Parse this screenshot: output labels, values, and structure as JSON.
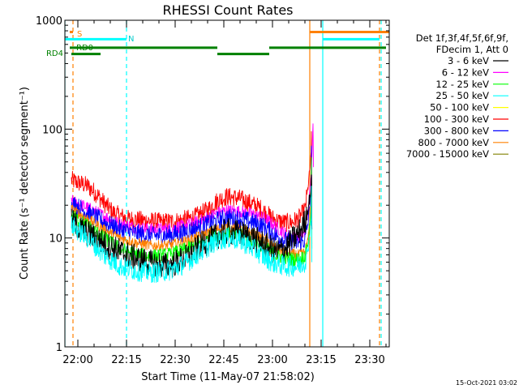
{
  "chart_data": {
    "type": "line",
    "title": "RHESSI Count Rates",
    "xlabel": "Start Time (11-May-07 21:58:02)",
    "ylabel": "Count Rate (s⁻¹ detector segment⁻¹)",
    "yscale": "log",
    "xlim_minutes": [
      -2,
      98
    ],
    "ylim": [
      1,
      1000
    ],
    "x_ticks": [
      {
        "minute": 2,
        "label": "22:00"
      },
      {
        "minute": 17,
        "label": "22:15"
      },
      {
        "minute": 32,
        "label": "22:30"
      },
      {
        "minute": 47,
        "label": "22:45"
      },
      {
        "minute": 62,
        "label": "23:00"
      },
      {
        "minute": 77,
        "label": "23:15"
      },
      {
        "minute": 92,
        "label": "23:30"
      }
    ],
    "y_ticks": [
      {
        "value": 1,
        "label": "1"
      },
      {
        "value": 10,
        "label": "10"
      },
      {
        "value": 100,
        "label": "100"
      },
      {
        "value": 1000,
        "label": "1000"
      }
    ],
    "legend": {
      "header": [
        "Det 1f,3f,4f,5f,6f,9f,",
        "FDecim 1, Att 0"
      ],
      "entries": [
        {
          "label": "3 - 6 keV",
          "color": "#000000"
        },
        {
          "label": "6 - 12 keV",
          "color": "#ff00ff"
        },
        {
          "label": "12 - 25 keV",
          "color": "#00ff00"
        },
        {
          "label": "25 - 50 keV",
          "color": "#00ffff"
        },
        {
          "label": "50 - 100 keV",
          "color": "#ffff00"
        },
        {
          "label": "100 - 300 keV",
          "color": "#ff0000"
        },
        {
          "label": "300 - 800 keV",
          "color": "#0000ff"
        },
        {
          "label": "800 - 7000 keV",
          "color": "#ff8000"
        },
        {
          "label": "7000 - 15000 keV",
          "color": "#808000"
        }
      ]
    },
    "series": [
      {
        "name": "100 - 300 keV",
        "color": "#ff0000",
        "noise": 0.09,
        "end": 74,
        "spike": 95,
        "points": [
          [
            0,
            34
          ],
          [
            5,
            30
          ],
          [
            8,
            25
          ],
          [
            10,
            21
          ],
          [
            13,
            17
          ],
          [
            17,
            15
          ],
          [
            22,
            14.5
          ],
          [
            28,
            14
          ],
          [
            33,
            14.3
          ],
          [
            38,
            15.5
          ],
          [
            42,
            18
          ],
          [
            45,
            22
          ],
          [
            48,
            24
          ],
          [
            52,
            23
          ],
          [
            55,
            21
          ],
          [
            58,
            19
          ],
          [
            61,
            16
          ],
          [
            63,
            14.5
          ],
          [
            66,
            13.8
          ],
          [
            68,
            14
          ],
          [
            70,
            15
          ],
          [
            72,
            18
          ],
          [
            73,
            30
          ],
          [
            74,
            60
          ]
        ]
      },
      {
        "name": "6 - 12 keV",
        "color": "#ff00ff",
        "noise": 0.06,
        "end": 74.5,
        "spike": 112,
        "points": [
          [
            0,
            22
          ],
          [
            5,
            19
          ],
          [
            10,
            16
          ],
          [
            15,
            13.5
          ],
          [
            20,
            12.5
          ],
          [
            25,
            12
          ],
          [
            30,
            12.2
          ],
          [
            35,
            13
          ],
          [
            40,
            14.5
          ],
          [
            45,
            17
          ],
          [
            48,
            18
          ],
          [
            52,
            17.5
          ],
          [
            56,
            16.5
          ],
          [
            60,
            15
          ],
          [
            64,
            12
          ],
          [
            67,
            10.5
          ],
          [
            70,
            10
          ],
          [
            72,
            11
          ],
          [
            73,
            18
          ],
          [
            74,
            40
          ],
          [
            74.5,
            112
          ]
        ]
      },
      {
        "name": "300 - 800 keV",
        "color": "#0000ff",
        "noise": 0.09,
        "end": 74,
        "spike": 70,
        "points": [
          [
            0,
            21
          ],
          [
            5,
            17
          ],
          [
            10,
            14
          ],
          [
            15,
            12
          ],
          [
            20,
            11
          ],
          [
            25,
            10.5
          ],
          [
            30,
            10.6
          ],
          [
            35,
            11.3
          ],
          [
            40,
            12.8
          ],
          [
            45,
            14.5
          ],
          [
            48,
            15.5
          ],
          [
            52,
            15
          ],
          [
            56,
            14
          ],
          [
            60,
            12.5
          ],
          [
            63,
            10.5
          ],
          [
            66,
            9.5
          ],
          [
            70,
            9
          ],
          [
            72,
            9.5
          ],
          [
            73,
            14
          ],
          [
            74,
            30
          ]
        ]
      },
      {
        "name": "800 - 7000 keV",
        "color": "#ff8000",
        "noise": 0.05,
        "end": 74,
        "spike": 40,
        "points": [
          [
            0,
            18.5
          ],
          [
            5,
            15
          ],
          [
            10,
            12
          ],
          [
            15,
            10
          ],
          [
            20,
            9
          ],
          [
            25,
            8.5
          ],
          [
            30,
            8.6
          ],
          [
            35,
            9.3
          ],
          [
            40,
            10.5
          ],
          [
            45,
            12
          ],
          [
            48,
            12.5
          ],
          [
            52,
            12
          ],
          [
            56,
            11
          ],
          [
            60,
            9.5
          ],
          [
            63,
            8
          ],
          [
            66,
            7.3
          ],
          [
            70,
            7
          ],
          [
            72,
            7.4
          ],
          [
            73,
            10
          ],
          [
            74,
            22
          ]
        ]
      },
      {
        "name": "12 - 25 keV",
        "color": "#00ff00",
        "noise": 0.07,
        "end": 74,
        "spike": 55,
        "points": [
          [
            0,
            16
          ],
          [
            5,
            13
          ],
          [
            10,
            10
          ],
          [
            15,
            8
          ],
          [
            20,
            7
          ],
          [
            25,
            6.8
          ],
          [
            30,
            7
          ],
          [
            35,
            7.8
          ],
          [
            40,
            9
          ],
          [
            45,
            10.5
          ],
          [
            48,
            11
          ],
          [
            52,
            10.6
          ],
          [
            56,
            9.5
          ],
          [
            60,
            8
          ],
          [
            63,
            7
          ],
          [
            66,
            6.5
          ],
          [
            70,
            6.3
          ],
          [
            72,
            6.8
          ],
          [
            73,
            9
          ],
          [
            74,
            20
          ]
        ]
      },
      {
        "name": "3 - 6 keV",
        "color": "#000000",
        "noise": 0.13,
        "end": 74,
        "spike": 38,
        "points": [
          [
            0,
            14
          ],
          [
            5,
            11
          ],
          [
            10,
            9
          ],
          [
            15,
            7.5
          ],
          [
            20,
            6.5
          ],
          [
            25,
            5.8
          ],
          [
            30,
            5.5
          ],
          [
            35,
            6.5
          ],
          [
            40,
            8.5
          ],
          [
            45,
            10.5
          ],
          [
            48,
            11.5
          ],
          [
            52,
            11
          ],
          [
            56,
            10
          ],
          [
            60,
            8.5
          ],
          [
            63,
            7.5
          ],
          [
            66,
            8
          ],
          [
            68,
            9.5
          ],
          [
            70,
            11
          ],
          [
            72,
            14
          ],
          [
            73,
            19
          ],
          [
            74,
            30
          ]
        ]
      },
      {
        "name": "25 - 50 keV",
        "color": "#00ffff",
        "noise": 0.1,
        "end": 74,
        "spike": 30,
        "points": [
          [
            0,
            13
          ],
          [
            5,
            10
          ],
          [
            10,
            7
          ],
          [
            15,
            5.5
          ],
          [
            20,
            5
          ],
          [
            25,
            4.8
          ],
          [
            30,
            5
          ],
          [
            35,
            5.8
          ],
          [
            40,
            7.5
          ],
          [
            45,
            9.5
          ],
          [
            48,
            10
          ],
          [
            52,
            9.5
          ],
          [
            56,
            8
          ],
          [
            60,
            6.5
          ],
          [
            63,
            5.8
          ],
          [
            66,
            5.5
          ],
          [
            70,
            5.5
          ],
          [
            72,
            6
          ],
          [
            73,
            8
          ],
          [
            74,
            15
          ]
        ]
      }
    ],
    "flag_lines": [
      {
        "label": "S",
        "color": "#ff8000",
        "segments": [
          [
            -0.5,
            0.5
          ],
          [
            73.5,
            98
          ]
        ],
        "level": 780
      },
      {
        "label": "N",
        "color": "#00ffff",
        "segments": [
          [
            -2,
            17
          ],
          [
            77.5,
            95
          ]
        ],
        "level": 670
      },
      {
        "label": "RD0",
        "color": "#008000",
        "segments": [
          [
            -0.5,
            9
          ],
          [
            9,
            45
          ],
          [
            61,
            97
          ]
        ],
        "level": 560
      },
      {
        "label": "RD4",
        "color": "#008000",
        "segments": [
          [
            0,
            9
          ],
          [
            45,
            61
          ]
        ],
        "level": 490
      }
    ],
    "vertical_lines": [
      {
        "minute": -2,
        "color": "#00ffff",
        "style": "solid"
      },
      {
        "minute": 0.5,
        "color": "#ff8000",
        "style": "dashed"
      },
      {
        "minute": 17,
        "color": "#00ffff",
        "style": "dashed"
      },
      {
        "minute": 73.5,
        "color": "#ff8000",
        "style": "solid"
      },
      {
        "minute": 77.5,
        "color": "#00ffff",
        "style": "solid"
      },
      {
        "minute": 95,
        "color": "#ff8000",
        "style": "dashed"
      },
      {
        "minute": 95.5,
        "color": "#00ffff",
        "style": "dashed"
      }
    ]
  },
  "footer": {
    "date_stamp": "15-Oct-2021 03:02"
  }
}
